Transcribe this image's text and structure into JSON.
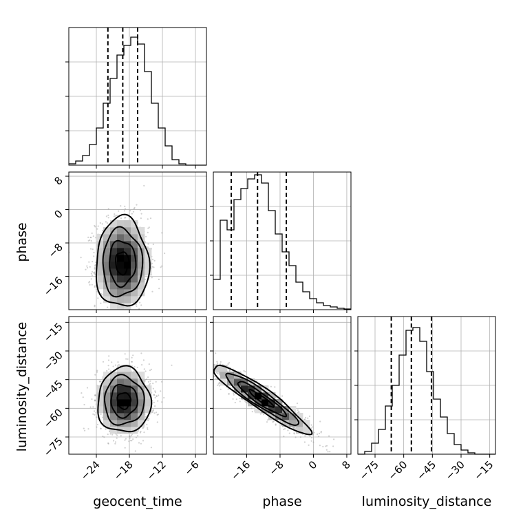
{
  "chart_data": {
    "type": "corner",
    "parameters": [
      "geocent_time",
      "phase",
      "luminosity_distance"
    ],
    "grid": true,
    "ranges": {
      "geocent_time": [
        -29,
        -4
      ],
      "phase": [
        -24,
        9
      ],
      "luminosity_distance": [
        -84,
        -12
      ]
    },
    "ticks": {
      "geocent_time": [
        -24,
        -18,
        -12,
        -6
      ],
      "phase": [
        -16,
        -8,
        0,
        8
      ],
      "luminosity_distance": [
        -75,
        -60,
        -45,
        -30,
        -15
      ]
    },
    "tick_labels": {
      "geocent_time": [
        "−24",
        "−18",
        "−12",
        "−6"
      ],
      "phase": [
        "−16",
        "−8",
        "0",
        "8"
      ],
      "luminosity_distance": [
        "−75",
        "−60",
        "−45",
        "−30",
        "−15"
      ]
    },
    "quantiles": {
      "geocent_time": [
        -21.9,
        -19.2,
        -16.5
      ],
      "phase": [
        -19.7,
        -13.4,
        -6.5
      ],
      "luminosity_distance": [
        -66.5,
        -56.0,
        -45.5
      ]
    },
    "histograms": {
      "geocent_time": {
        "x_min": -29,
        "bin_width": 1.25,
        "counts": [
          0.01,
          0.03,
          0.07,
          0.15,
          0.27,
          0.45,
          0.63,
          0.8,
          0.87,
          0.93,
          0.88,
          0.68,
          0.45,
          0.27,
          0.14,
          0.04,
          0.01,
          0,
          0,
          0
        ]
      },
      "phase": {
        "x_min": -24,
        "bin_width": 1.65,
        "counts": [
          0.22,
          0.65,
          0.58,
          0.8,
          0.88,
          0.95,
          0.98,
          0.92,
          0.72,
          0.55,
          0.42,
          0.32,
          0.2,
          0.13,
          0.08,
          0.05,
          0.03,
          0.02,
          0.01,
          0.005
        ]
      },
      "luminosity_distance": {
        "x_min": -84,
        "bin_width": 3.6,
        "counts": [
          0,
          0.02,
          0.08,
          0.18,
          0.35,
          0.5,
          0.72,
          0.9,
          0.92,
          0.82,
          0.6,
          0.4,
          0.27,
          0.15,
          0.07,
          0.03,
          0.01,
          0,
          0,
          0
        ]
      }
    },
    "pairs": [
      {
        "x": "geocent_time",
        "y": "phase",
        "mean": [
          -19.3,
          -12.8
        ],
        "sd": [
          2.4,
          5.4
        ],
        "rho": 0.0
      },
      {
        "x": "geocent_time",
        "y": "luminosity_distance",
        "mean": [
          -19.0,
          -56.0
        ],
        "sd": [
          2.4,
          8.5
        ],
        "rho": 0.0
      },
      {
        "x": "phase",
        "y": "luminosity_distance",
        "mean": [
          -12.5,
          -55.0
        ],
        "sd": [
          5.8,
          9.0
        ],
        "rho": -0.93
      }
    ],
    "contour_levels": [
      0.5,
      1.0,
      1.5,
      2.0
    ]
  }
}
